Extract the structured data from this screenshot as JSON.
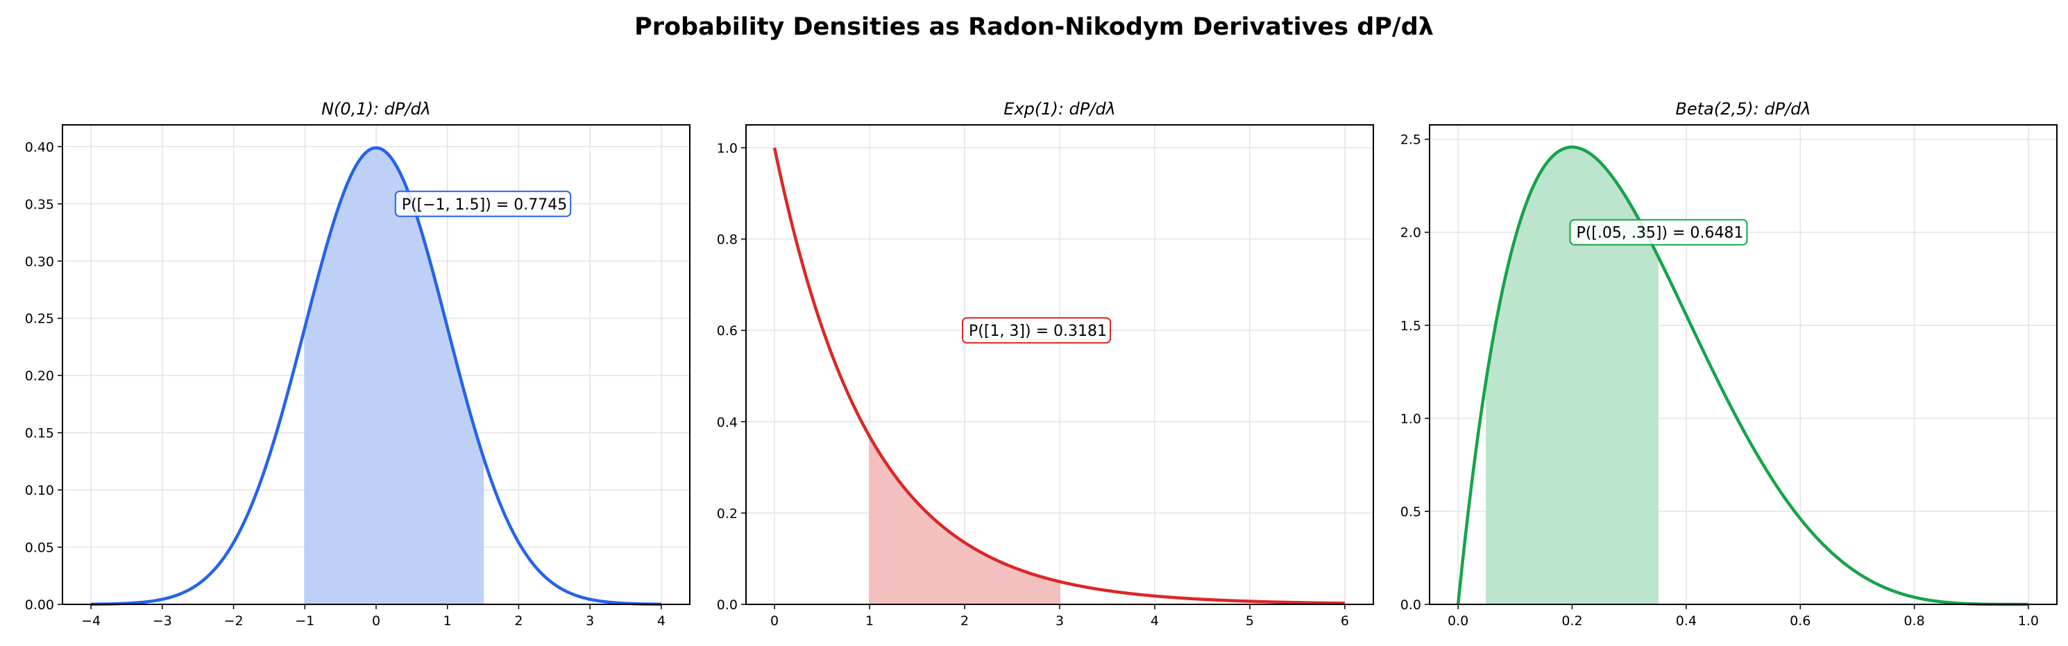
{
  "suptitle": "Probability Densities as Radon-Nikodym Derivatives dP/dλ",
  "chart_data": [
    {
      "type": "line",
      "title": "N(0,1): dP/dλ",
      "distribution": "normal",
      "params": {
        "mu": 0,
        "sigma": 1
      },
      "x_range": [
        -4,
        4
      ],
      "shaded_interval": [
        -1,
        1.5
      ],
      "annotation": "P([−1, 1.5]) = 0.7745",
      "annotation_at": [
        0.3,
        0.35
      ],
      "color": "#2563eb",
      "fill_color": "#bccdf7",
      "xlim": [
        -4.4,
        4.4
      ],
      "ylim": [
        0,
        0.419
      ],
      "xticks": [
        -4,
        -3,
        -2,
        -1,
        0,
        1,
        2,
        3,
        4
      ],
      "xtick_labels": [
        "−4",
        "−3",
        "−2",
        "−1",
        "0",
        "1",
        "2",
        "3",
        "4"
      ],
      "yticks": [
        0,
        0.05,
        0.1,
        0.15,
        0.2,
        0.25,
        0.3,
        0.35,
        0.4
      ],
      "ytick_labels": [
        "0.00",
        "0.05",
        "0.10",
        "0.15",
        "0.20",
        "0.25",
        "0.30",
        "0.35",
        "0.40"
      ],
      "grid": true
    },
    {
      "type": "line",
      "title": "Exp(1): dP/dλ",
      "distribution": "exponential",
      "params": {
        "rate": 1
      },
      "x_range": [
        0,
        6
      ],
      "shaded_interval": [
        1,
        3
      ],
      "annotation": "P([1, 3]) = 0.3181",
      "annotation_at": [
        2,
        0.6
      ],
      "color": "#dc2626",
      "fill_color": "#f2bcbc",
      "xlim": [
        -0.3,
        6.3
      ],
      "ylim": [
        0,
        1.05
      ],
      "xticks": [
        0,
        1,
        2,
        3,
        4,
        5,
        6
      ],
      "xtick_labels": [
        "0",
        "1",
        "2",
        "3",
        "4",
        "5",
        "6"
      ],
      "yticks": [
        0,
        0.2,
        0.4,
        0.6,
        0.8,
        1.0
      ],
      "ytick_labels": [
        "0.0",
        "0.2",
        "0.4",
        "0.6",
        "0.8",
        "1.0"
      ],
      "grid": true
    },
    {
      "type": "line",
      "title": "Beta(2,5): dP/dλ",
      "distribution": "beta",
      "params": {
        "a": 2,
        "b": 5
      },
      "x_range": [
        0,
        1
      ],
      "shaded_interval": [
        0.05,
        0.35
      ],
      "annotation": "P([.05, .35]) = 0.6481",
      "annotation_at": [
        0.2,
        2.0
      ],
      "color": "#16a34a",
      "fill_color": "#b9e3c9",
      "xlim": [
        -0.05,
        1.05
      ],
      "ylim": [
        0,
        2.577
      ],
      "xticks": [
        0,
        0.2,
        0.4,
        0.6,
        0.8,
        1.0
      ],
      "xtick_labels": [
        "0.0",
        "0.2",
        "0.4",
        "0.6",
        "0.8",
        "1.0"
      ],
      "yticks": [
        0,
        0.5,
        1.0,
        1.5,
        2.0,
        2.5
      ],
      "ytick_labels": [
        "0.0",
        "0.5",
        "1.0",
        "1.5",
        "2.0",
        "2.5"
      ],
      "grid": true
    }
  ]
}
